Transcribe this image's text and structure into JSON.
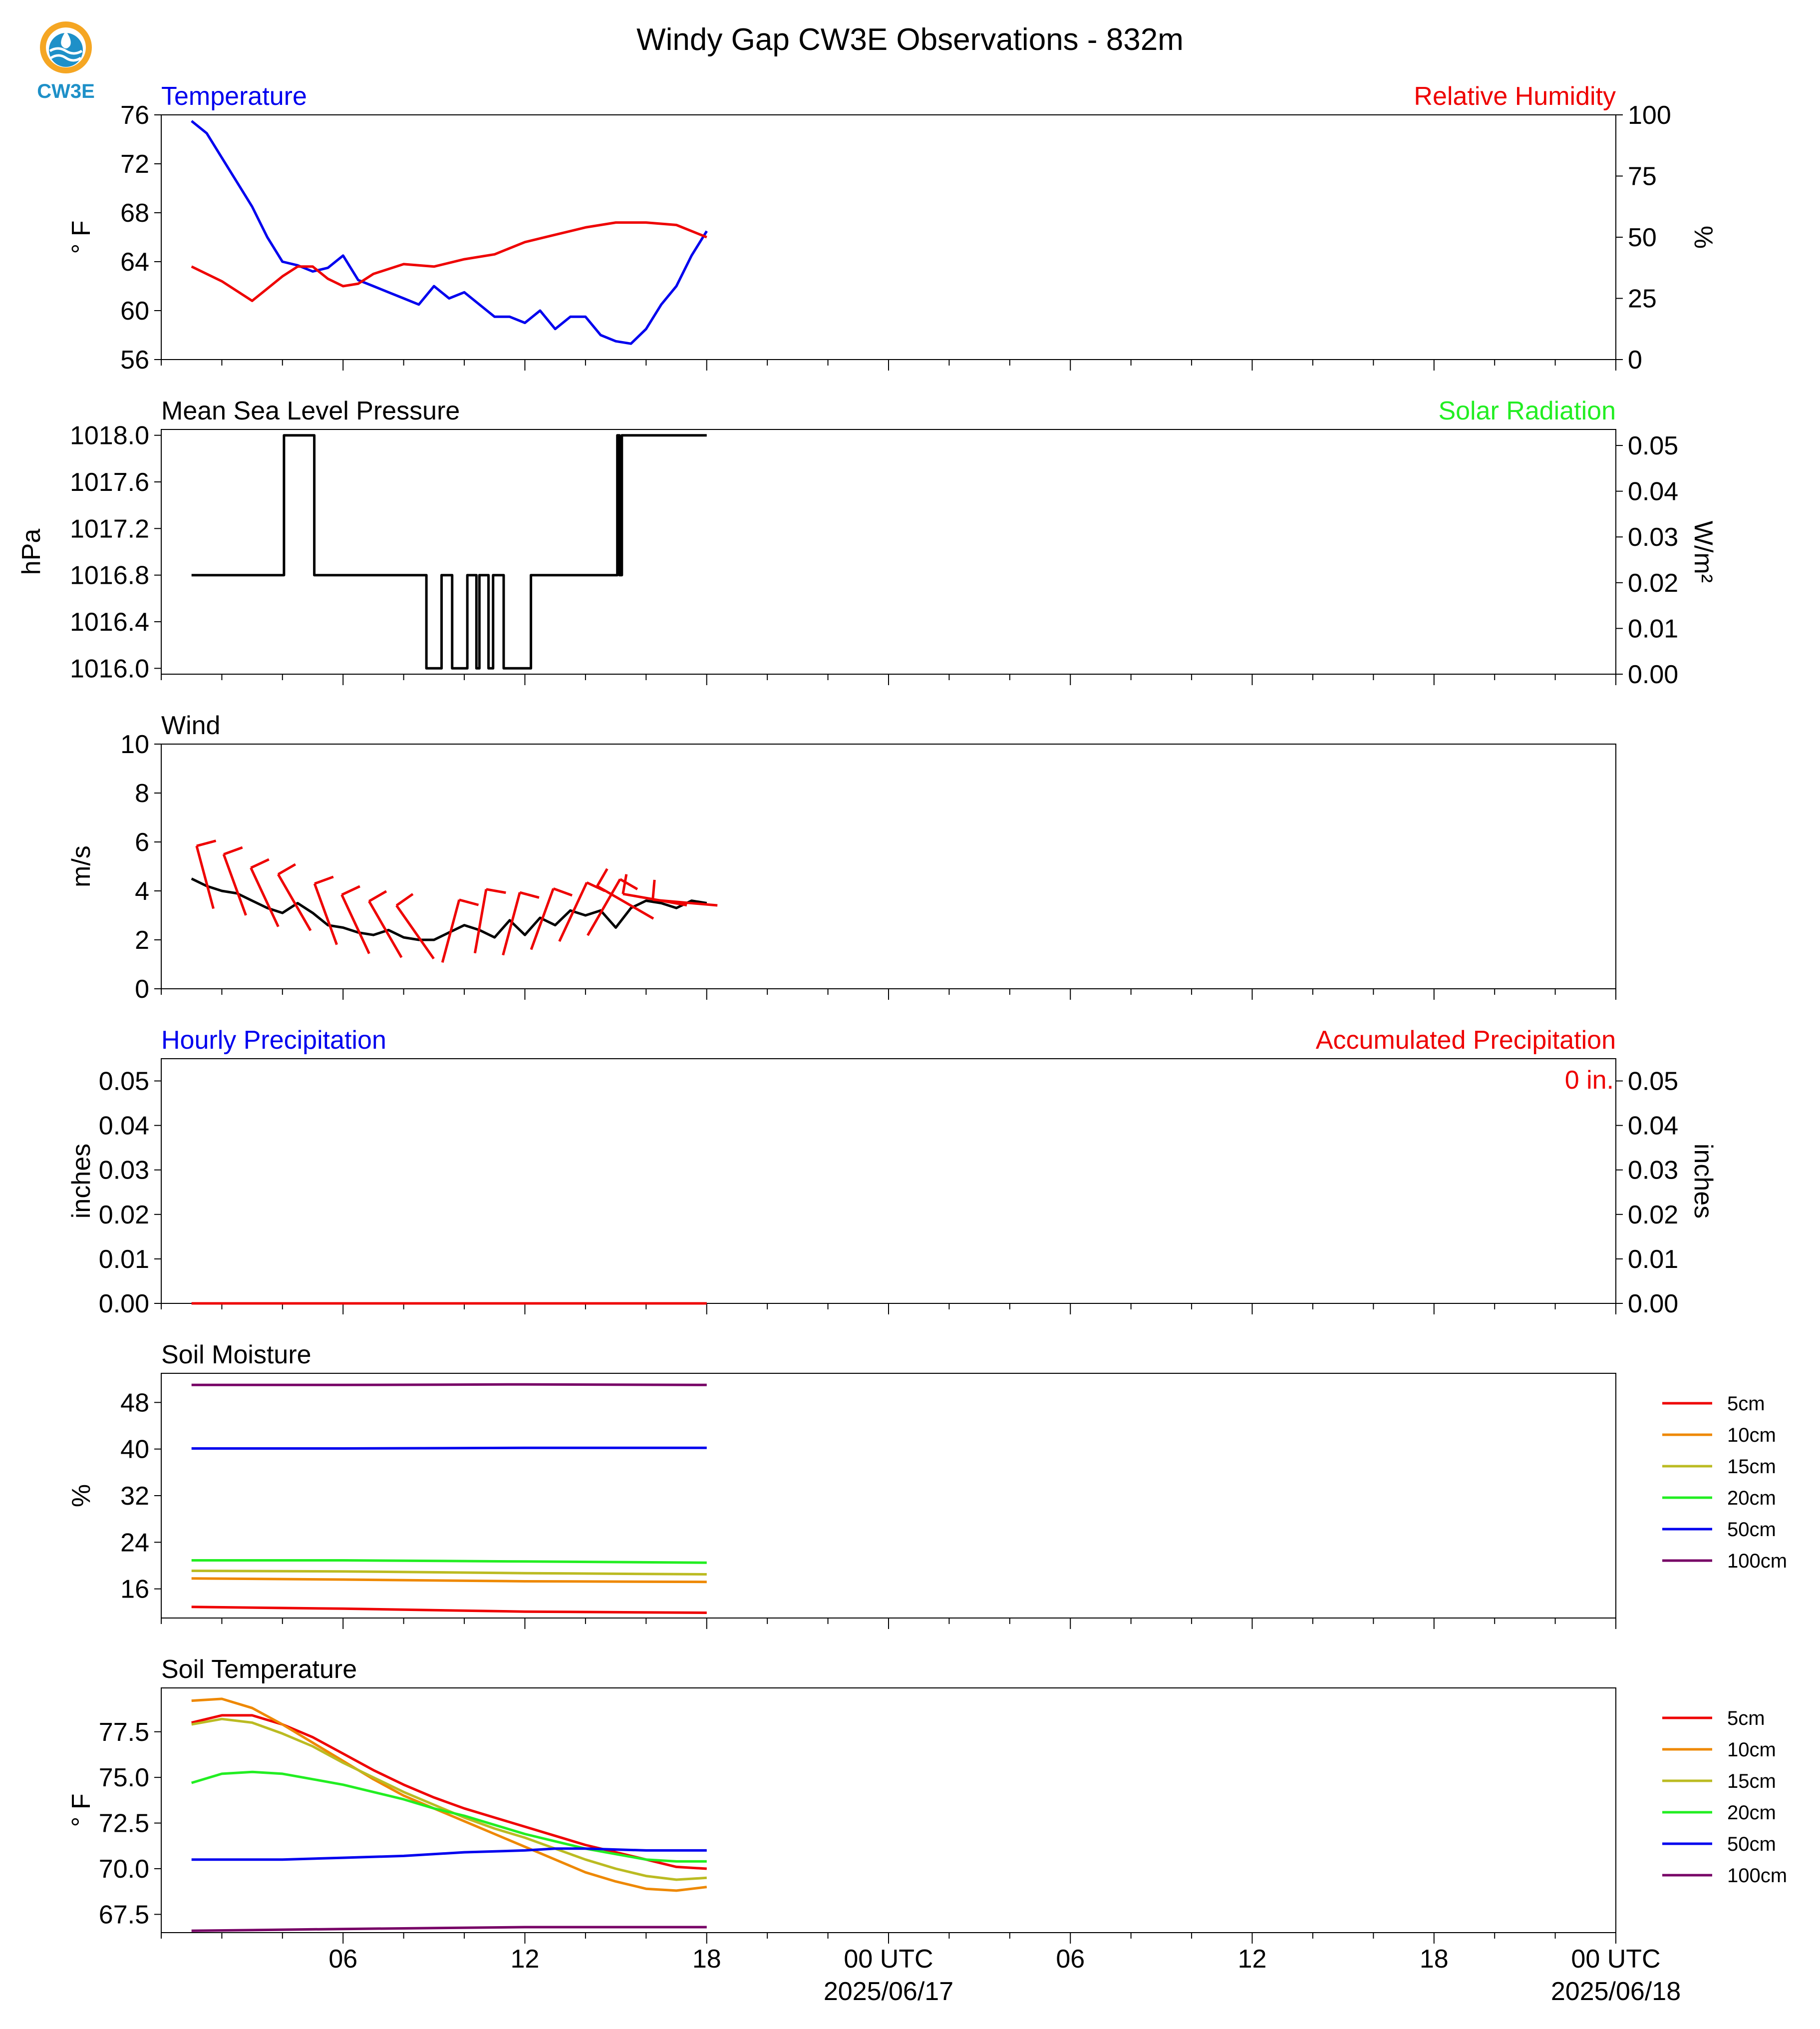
{
  "figure": {
    "title": "Windy Gap CW3E Observations - 832m",
    "logo_text": "CW3E",
    "x_axis": {
      "tick_labels": [
        "06",
        "12",
        "18",
        "00 UTC",
        "06",
        "12",
        "18",
        "00 UTC"
      ],
      "date_labels": [
        "2025/06/17",
        "2025/06/18"
      ]
    }
  },
  "chart_data": [
    {
      "type": "line",
      "panel": "temperature-humidity",
      "title_left": "Temperature",
      "title_right": "Relative Humidity",
      "ylabel_left": "° F",
      "ylabel_right": "%",
      "ylim_left": [
        56,
        76
      ],
      "yticks_left": [
        "76",
        "72",
        "68",
        "64",
        "60",
        "56"
      ],
      "ylim_right": [
        0,
        100
      ],
      "yticks_right": [
        "100",
        "75",
        "50",
        "25",
        "0"
      ],
      "colors": {
        "Temperature": "#0000ee",
        "Relative Humidity": "#ee0000"
      },
      "series": [
        {
          "name": "Temperature",
          "axis": "left",
          "x_hours": [
            1,
            1.5,
            2,
            2.5,
            3,
            3.5,
            4,
            4.5,
            5,
            5.5,
            6,
            6.5,
            7,
            7.5,
            8,
            8.5,
            9,
            9.5,
            10,
            10.5,
            11,
            11.5,
            12,
            12.5,
            13,
            13.5,
            14,
            14.5,
            15,
            15.5,
            16,
            16.5,
            17,
            17.5,
            18
          ],
          "values": [
            75.5,
            74.5,
            72.5,
            70.5,
            68.5,
            66,
            64,
            63.7,
            63.2,
            63.5,
            64.5,
            62.5,
            62,
            61.5,
            61,
            60.5,
            62,
            61,
            61.5,
            60.5,
            59.5,
            59.5,
            59,
            60,
            58.5,
            59.5,
            59.5,
            58,
            57.5,
            57.3,
            58.5,
            60.5,
            62,
            64.5,
            66.5
          ]
        },
        {
          "name": "Relative Humidity",
          "axis": "right",
          "x_hours": [
            1,
            2,
            3,
            3.5,
            4,
            4.5,
            5,
            5.5,
            6,
            6.5,
            7,
            8,
            9,
            10,
            11,
            12,
            13,
            14,
            15,
            16,
            17,
            18
          ],
          "values": [
            38,
            32,
            24,
            29,
            34,
            38,
            38,
            33,
            30,
            31,
            35,
            39,
            38,
            41,
            43,
            48,
            51,
            54,
            56,
            56,
            55,
            50
          ]
        }
      ]
    },
    {
      "type": "line",
      "panel": "pressure-solar",
      "title_left": "Mean Sea Level Pressure",
      "title_right": "Solar Radiation",
      "ylabel_left": "hPa",
      "ylabel_right": "W/m²",
      "ylim_left": [
        1015.95,
        1018.05
      ],
      "yticks_left": [
        "1018.0",
        "1017.6",
        "1017.2",
        "1016.8",
        "1016.4",
        "1016.0"
      ],
      "ylim_right": [
        0,
        0.0535
      ],
      "yticks_right": [
        "0.05",
        "0.04",
        "0.03",
        "0.02",
        "0.01",
        "0.00"
      ],
      "colors": {
        "Mean Sea Level Pressure": "#000000",
        "Solar Radiation": "#22ee22"
      },
      "series": [
        {
          "name": "Mean Sea Level Pressure",
          "axis": "left",
          "x_hours": [
            1,
            4.05,
            4.05,
            5.05,
            5.05,
            8.75,
            8.75,
            9.25,
            9.25,
            9.6,
            9.6,
            10.1,
            10.1,
            10.4,
            10.4,
            10.5,
            10.5,
            10.8,
            10.8,
            10.95,
            10.95,
            11.3,
            11.3,
            12.2,
            12.2,
            15.05,
            15.05,
            15.12,
            15.12,
            15.2,
            15.2,
            18
          ],
          "values": [
            1016.8,
            1016.8,
            1018.0,
            1018.0,
            1016.8,
            1016.8,
            1016.0,
            1016.0,
            1016.8,
            1016.8,
            1016.0,
            1016.0,
            1016.8,
            1016.8,
            1016.0,
            1016.0,
            1016.8,
            1016.8,
            1016.0,
            1016.0,
            1016.8,
            1016.8,
            1016.0,
            1016.0,
            1016.8,
            1016.8,
            1018.0,
            1018.0,
            1016.8,
            1016.8,
            1018.0,
            1018.0
          ]
        }
      ]
    },
    {
      "type": "line",
      "panel": "wind",
      "title_left": "Wind",
      "ylabel_left": "m/s",
      "ylim_left": [
        0,
        10
      ],
      "yticks_left": [
        "10",
        "8",
        "6",
        "4",
        "2",
        "0"
      ],
      "colors": {
        "speed": "#000000",
        "barbs": "#ee0000"
      },
      "series": [
        {
          "name": "speed",
          "axis": "left",
          "x_hours": [
            1,
            1.5,
            2,
            2.5,
            3,
            3.5,
            4,
            4.5,
            5,
            5.5,
            6,
            6.5,
            7,
            7.5,
            8,
            8.5,
            9,
            9.5,
            10,
            10.5,
            11,
            11.5,
            12,
            12.5,
            13,
            13.5,
            14,
            14.5,
            15,
            15.5,
            16,
            16.5,
            17,
            17.5,
            18
          ],
          "values": [
            4.5,
            4.2,
            4.0,
            3.9,
            3.6,
            3.3,
            3.1,
            3.5,
            3.1,
            2.6,
            2.5,
            2.3,
            2.2,
            2.4,
            2.1,
            2.0,
            2.0,
            2.3,
            2.6,
            2.4,
            2.1,
            2.8,
            2.2,
            2.9,
            2.6,
            3.2,
            3.0,
            3.2,
            2.5,
            3.3,
            3.6,
            3.5,
            3.3,
            3.6,
            3.5
          ]
        }
      ],
      "barbs": {
        "x_hours": [
          1.5,
          2.5,
          3.5,
          4.5,
          5.5,
          6.5,
          7.5,
          8.5,
          9.5,
          10.5,
          11.5,
          12.5,
          13.5,
          14.5,
          15.5,
          16.5,
          17.5
        ],
        "speed": [
          4.3,
          4.0,
          3.5,
          3.3,
          2.8,
          2.4,
          2.2,
          2.1,
          2.1,
          2.5,
          2.4,
          2.6,
          2.9,
          3.1,
          3.4,
          3.6,
          3.5
        ],
        "dir_deg": [
          345,
          340,
          335,
          330,
          340,
          335,
          330,
          325,
          15,
          10,
          15,
          20,
          25,
          30,
          300,
          280,
          275
        ]
      }
    },
    {
      "type": "line",
      "panel": "precipitation",
      "title_left": "Hourly Precipitation",
      "title_right": "Accumulated Precipitation",
      "annotation": "0 in.",
      "ylabel_left": "inches",
      "ylabel_right": "inches",
      "ylim_left": [
        0,
        0.055
      ],
      "yticks_left": [
        "0.05",
        "0.04",
        "0.03",
        "0.02",
        "0.01",
        "0.00"
      ],
      "ylim_right": [
        0,
        0.055
      ],
      "yticks_right": [
        "0.05",
        "0.04",
        "0.03",
        "0.02",
        "0.01",
        "0.00"
      ],
      "colors": {
        "Hourly Precipitation": "#0000ee",
        "Accumulated Precipitation": "#ee0000"
      },
      "series": [
        {
          "name": "Hourly Precipitation",
          "axis": "left",
          "x_hours": [
            1,
            18
          ],
          "values": [
            0,
            0
          ]
        },
        {
          "name": "Accumulated Precipitation",
          "axis": "right",
          "x_hours": [
            1,
            18
          ],
          "values": [
            0,
            0
          ]
        }
      ]
    },
    {
      "type": "line",
      "panel": "soil-moisture",
      "title_left": "Soil Moisture",
      "ylabel_left": "%",
      "ylim_left": [
        11,
        53
      ],
      "yticks_left": [
        "48",
        "40",
        "32",
        "24",
        "16"
      ],
      "colors": {
        "5cm": "#ee0000",
        "10cm": "#ee8800",
        "15cm": "#bbbb22",
        "20cm": "#22ee22",
        "50cm": "#0000ee",
        "100cm": "#770066"
      },
      "legend": [
        "5cm",
        "10cm",
        "15cm",
        "20cm",
        "50cm",
        "100cm"
      ],
      "series": [
        {
          "name": "5cm",
          "axis": "left",
          "x_hours": [
            1,
            6,
            12,
            18
          ],
          "values": [
            12.9,
            12.6,
            12.1,
            11.9
          ]
        },
        {
          "name": "10cm",
          "axis": "left",
          "x_hours": [
            1,
            6,
            12,
            18
          ],
          "values": [
            17.8,
            17.6,
            17.3,
            17.2
          ]
        },
        {
          "name": "15cm",
          "axis": "left",
          "x_hours": [
            1,
            6,
            12,
            18
          ],
          "values": [
            19.1,
            19.0,
            18.7,
            18.5
          ]
        },
        {
          "name": "20cm",
          "axis": "left",
          "x_hours": [
            1,
            6,
            12,
            18
          ],
          "values": [
            20.9,
            20.9,
            20.7,
            20.5
          ]
        },
        {
          "name": "50cm",
          "axis": "left",
          "x_hours": [
            1,
            6,
            12,
            18
          ],
          "values": [
            40.1,
            40.1,
            40.2,
            40.2
          ]
        },
        {
          "name": "100cm",
          "axis": "left",
          "x_hours": [
            1,
            6,
            12,
            18
          ],
          "values": [
            51.0,
            51.0,
            51.1,
            51.0
          ]
        }
      ]
    },
    {
      "type": "line",
      "panel": "soil-temperature",
      "title_left": "Soil Temperature",
      "ylabel_left": "° F",
      "ylim_left": [
        66.5,
        79.9
      ],
      "yticks_left": [
        "77.5",
        "75.0",
        "72.5",
        "70.0",
        "67.5"
      ],
      "colors": {
        "5cm": "#ee0000",
        "10cm": "#ee8800",
        "15cm": "#bbbb22",
        "20cm": "#22ee22",
        "50cm": "#0000ee",
        "100cm": "#770066"
      },
      "legend": [
        "5cm",
        "10cm",
        "15cm",
        "20cm",
        "50cm",
        "100cm"
      ],
      "series": [
        {
          "name": "5cm",
          "axis": "left",
          "x_hours": [
            1,
            2,
            3,
            4,
            5,
            6,
            7,
            8,
            9,
            10,
            11,
            12,
            13,
            14,
            15,
            16,
            17,
            18
          ],
          "values": [
            78.0,
            78.4,
            78.4,
            77.9,
            77.2,
            76.3,
            75.4,
            74.6,
            73.9,
            73.3,
            72.8,
            72.3,
            71.8,
            71.3,
            70.9,
            70.5,
            70.1,
            70.0
          ]
        },
        {
          "name": "10cm",
          "axis": "left",
          "x_hours": [
            1,
            2,
            3,
            4,
            5,
            6,
            7,
            8,
            9,
            10,
            11,
            12,
            13,
            14,
            15,
            16,
            17,
            18
          ],
          "values": [
            79.2,
            79.3,
            78.8,
            77.9,
            76.9,
            75.9,
            74.9,
            74.0,
            73.3,
            72.6,
            71.9,
            71.2,
            70.5,
            69.8,
            69.3,
            68.9,
            68.8,
            69.0
          ]
        },
        {
          "name": "15cm",
          "axis": "left",
          "x_hours": [
            1,
            2,
            3,
            4,
            5,
            6,
            7,
            8,
            9,
            10,
            11,
            12,
            13,
            14,
            15,
            16,
            17,
            18
          ],
          "values": [
            77.9,
            78.2,
            78.0,
            77.4,
            76.7,
            75.8,
            75.0,
            74.2,
            73.5,
            72.8,
            72.2,
            71.7,
            71.1,
            70.5,
            70.0,
            69.6,
            69.4,
            69.5
          ]
        },
        {
          "name": "20cm",
          "axis": "left",
          "x_hours": [
            1,
            2,
            3,
            4,
            5,
            6,
            7,
            8,
            9,
            10,
            11,
            12,
            13,
            14,
            15,
            16,
            17,
            18
          ],
          "values": [
            74.7,
            75.2,
            75.3,
            75.2,
            74.9,
            74.6,
            74.2,
            73.8,
            73.3,
            72.9,
            72.4,
            71.9,
            71.5,
            71.1,
            70.8,
            70.5,
            70.4,
            70.4
          ]
        },
        {
          "name": "50cm",
          "axis": "left",
          "x_hours": [
            1,
            4,
            6,
            8,
            10,
            12,
            13,
            14,
            16,
            18
          ],
          "values": [
            70.5,
            70.5,
            70.6,
            70.7,
            70.9,
            71.0,
            71.1,
            71.1,
            71.0,
            71.0
          ]
        },
        {
          "name": "100cm",
          "axis": "left",
          "x_hours": [
            1,
            6,
            12,
            15,
            18
          ],
          "values": [
            66.6,
            66.7,
            66.8,
            66.8,
            66.8
          ]
        }
      ]
    }
  ]
}
